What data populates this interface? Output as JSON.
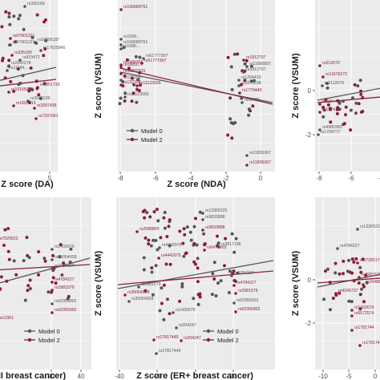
{
  "colors": {
    "model0": "#555555",
    "model2": "#8c1c3a",
    "panel_bg": "#ebebeb",
    "grid": "#ffffff"
  },
  "chart_data": [
    {
      "type": "scatter",
      "xlabel": "Z score (DA)",
      "ylabel": "",
      "xticks": [
        "5"
      ],
      "yticks": [],
      "legend": {
        "placement": "bottom-right",
        "entries": [
          "Model 0",
          "Model 2"
        ]
      },
      "grid": true,
      "series": [
        {
          "name": "Model 0",
          "color": "#555555"
        },
        {
          "name": "Model 2",
          "color": "#8c1c3a"
        }
      ],
      "labels": [
        {
          "text": "rs335189",
          "series": "Model 0"
        },
        {
          "text": "rs67901221",
          "series": "Model 2"
        },
        {
          "text": "rs10995187",
          "series": "Model 0"
        },
        {
          "text": "rs67901221",
          "series": "Model 0"
        },
        {
          "text": "rs17625845",
          "series": "Model 0"
        },
        {
          "text": "rs335189",
          "series": "Model 2"
        },
        {
          "text": "rs833472",
          "series": "Model 0"
        },
        {
          "text": "rs2642278",
          "series": "Model 0"
        },
        {
          "text": "rs11684...",
          "series": "Model 0"
        },
        {
          "text": "rs6851733",
          "series": "Model 2"
        },
        {
          "text": "rs10155920",
          "series": "Model 2"
        },
        {
          "text": "rs2042239",
          "series": "Model 0"
        },
        {
          "text": "rs1503613",
          "series": "Model 2"
        },
        {
          "text": "rs3397436",
          "series": "Model 2"
        },
        {
          "text": "rs7297061",
          "series": "Model 2"
        }
      ]
    },
    {
      "type": "scatter",
      "xlabel": "Z score (NDA)",
      "ylabel": "Z score (VSUM)",
      "xticks": [
        "-8",
        "-6",
        "-4",
        "-2",
        "0"
      ],
      "yticks": [],
      "legend": {
        "placement": "bottom-left",
        "entries": [
          "Model 0",
          "Model 2"
        ]
      },
      "grid": true,
      "series": [
        {
          "name": "Model 0",
          "color": "#555555"
        },
        {
          "name": "Model 2",
          "color": "#8c1c3a"
        }
      ],
      "labels": [
        {
          "text": "rs199689761",
          "series": "Model 2"
        },
        {
          "text": "rs1508...",
          "series": "Model 0"
        },
        {
          "text": "rs199689761",
          "series": "Model 0"
        },
        {
          "text": "rs1686...",
          "series": "Model 0"
        },
        {
          "text": "rs61777307",
          "series": "Model 0"
        },
        {
          "text": "rs1949355",
          "series": "Model 2"
        },
        {
          "text": "rs61777307",
          "series": "Model 2"
        },
        {
          "text": "rs18850...",
          "series": "Model 2"
        },
        {
          "text": "rs10802015",
          "series": "Model 2"
        },
        {
          "text": "rs132208",
          "series": "Model 0"
        },
        {
          "text": "rs11123556",
          "series": "Model 2"
        },
        {
          "text": "rs132208",
          "series": "Model 2"
        },
        {
          "text": "rs11123556",
          "series": "Model 0"
        },
        {
          "text": "rs1812707",
          "series": "Model 2"
        },
        {
          "text": "rs11890897",
          "series": "Model 0"
        },
        {
          "text": "rs1812707",
          "series": "Model 0"
        },
        {
          "text": "rs1294419",
          "series": "Model 0"
        },
        {
          "text": "rs2875238",
          "series": "Model 0"
        },
        {
          "text": "rs1779445",
          "series": "Model 2"
        },
        {
          "text": "rs13472",
          "series": "Model 0"
        },
        {
          "text": "rs11836367",
          "series": "Model 0"
        },
        {
          "text": "rs11836367",
          "series": "Model 2"
        }
      ]
    },
    {
      "type": "scatter",
      "xlabel": "",
      "ylabel": "Z score (VSUM)",
      "xticks": [
        "-8",
        "-6",
        "-4"
      ],
      "yticks": [
        "0",
        "-2"
      ],
      "legend": null,
      "grid": true,
      "series": [
        {
          "name": "Model 0",
          "color": "#555555"
        },
        {
          "name": "Model 2",
          "color": "#8c1c3a"
        }
      ],
      "labels": [
        {
          "text": "rs312670",
          "series": "Model 2"
        },
        {
          "text": "rs11676272",
          "series": "Model 2"
        },
        {
          "text": "rs2112670",
          "series": "Model 0"
        },
        {
          "text": "rs116...",
          "series": "Model 2"
        },
        {
          "text": "rs1374...",
          "series": "Model 2"
        },
        {
          "text": "rs4980383",
          "series": "Model 0"
        },
        {
          "text": "rs1704777",
          "series": "Model 0"
        }
      ]
    },
    {
      "type": "scatter",
      "xlabel": "II breast cancer)",
      "ylabel": "",
      "xticks": [
        "20",
        "40"
      ],
      "yticks": [],
      "legend": {
        "placement": "bottom-right",
        "entries": [
          "Model 0",
          "Model 2"
        ]
      },
      "grid": true,
      "series": [
        {
          "name": "Model 0",
          "color": "#555555"
        },
        {
          "name": "Model 2",
          "color": "#8c1c3a"
        }
      ],
      "labels": [
        {
          "text": "rs7529522",
          "series": "Model 2"
        },
        {
          "text": "rs1432679",
          "series": "Model 0"
        },
        {
          "text": "rs35054928",
          "series": "Model 0"
        },
        {
          "text": "rs4784227",
          "series": "Model 0"
        },
        {
          "text": "rs4784227",
          "series": "Model 2"
        },
        {
          "text": "rs2981579",
          "series": "Model 2"
        },
        {
          "text": "rs62355902",
          "series": "Model 0"
        },
        {
          "text": "rs62355902",
          "series": "Model 2"
        },
        {
          "text": "rs12361",
          "series": "Model 2"
        }
      ]
    },
    {
      "type": "scatter",
      "xlabel": "Z score (ER+ breast cancer)",
      "ylabel": "Z score (VSUM)",
      "xticks": [
        "-40",
        "-20",
        "0",
        "20"
      ],
      "yticks": [],
      "legend": {
        "placement": "bottom-right",
        "entries": [
          "Model 0",
          "Model 2"
        ]
      },
      "grid": true,
      "series": [
        {
          "name": "Model 0",
          "color": "#555555"
        },
        {
          "name": "Model 2",
          "color": "#8c1c3a"
        }
      ],
      "labels": [
        {
          "text": "rs13365225",
          "series": "Model 0"
        },
        {
          "text": "rs9833888",
          "series": "Model 0"
        },
        {
          "text": "rs9833888",
          "series": "Model 2"
        },
        {
          "text": "rs2588809",
          "series": "Model 2"
        },
        {
          "text": "rs6472903",
          "series": "Model 2"
        },
        {
          "text": "rs4442975",
          "series": "Model 0"
        },
        {
          "text": "rs4442975",
          "series": "Model 2"
        },
        {
          "text": "rs3817198",
          "series": "Model 0"
        },
        {
          "text": "rs4784227",
          "series": "Model 0"
        },
        {
          "text": "rs4784227",
          "series": "Model 2"
        },
        {
          "text": "rs2981579",
          "series": "Model 2"
        },
        {
          "text": "rs35054928",
          "series": "Model 2"
        },
        {
          "text": "rs2981579",
          "series": "Model 0"
        },
        {
          "text": "rs35054928",
          "series": "Model 0"
        },
        {
          "text": "rs62355902",
          "series": "Model 0"
        },
        {
          "text": "rs62355902",
          "series": "Model 2"
        },
        {
          "text": "rs1432679",
          "series": "Model 0"
        },
        {
          "text": "rs204247",
          "series": "Model 0"
        },
        {
          "text": "rs204247",
          "series": "Model 2"
        },
        {
          "text": "rs17817449",
          "series": "Model 2"
        },
        {
          "text": "rs17817449",
          "series": "Model 0"
        }
      ]
    },
    {
      "type": "scatter",
      "xlabel": "",
      "ylabel": "Z score (VSUM)",
      "xticks": [
        "-10",
        "-5",
        "0"
      ],
      "yticks": [
        "0",
        "-2"
      ],
      "legend": null,
      "grid": true,
      "series": [
        {
          "name": "Model 0",
          "color": "#555555"
        },
        {
          "name": "Model 2",
          "color": "#8c1c3a"
        }
      ],
      "labels": [
        {
          "text": "rs13365225",
          "series": "Model 0"
        },
        {
          "text": "rs4784227",
          "series": "Model 0"
        },
        {
          "text": "rs6725517",
          "series": "Model 2"
        },
        {
          "text": "rs2981579",
          "series": "Model 2"
        },
        {
          "text": "rs16488",
          "series": "Model 2"
        },
        {
          "text": "rs4245737",
          "series": "Model 2"
        },
        {
          "text": "rs1432679",
          "series": "Model 2"
        },
        {
          "text": "rs6572574",
          "series": "Model 2"
        },
        {
          "text": "rs1781744",
          "series": "Model 2"
        },
        {
          "text": "rs17817449",
          "series": "Model 2"
        }
      ]
    }
  ]
}
